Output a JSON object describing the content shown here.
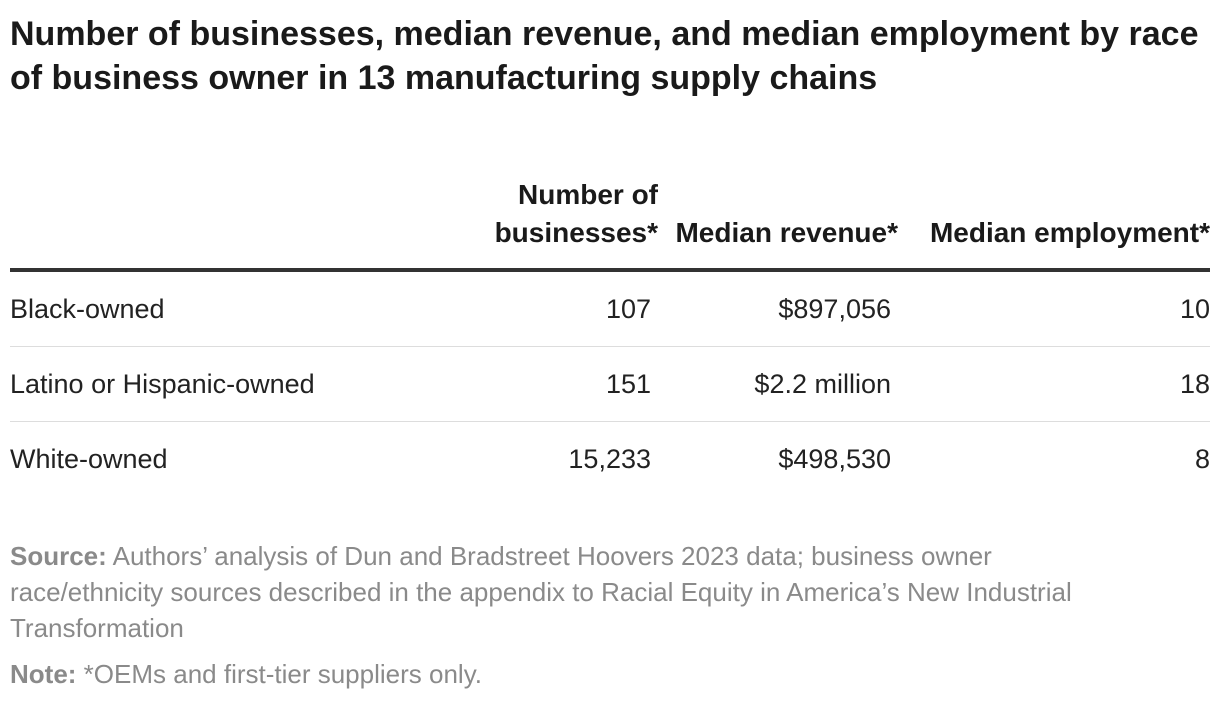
{
  "title": "Number of businesses, median revenue, and median employment by race of business owner in 13 manufacturing supply chains",
  "chart_data": {
    "type": "table",
    "title": "Number of businesses, median revenue, and median employment by race of business owner in 13 manufacturing supply chains",
    "columns": [
      "",
      "Number of businesses*",
      "Median revenue*",
      "Median employment*"
    ],
    "headers": {
      "number": "Number of businesses*",
      "revenue": "Median revenue*",
      "employment": "Median employment*"
    },
    "rows": [
      {
        "label": "Black-owned",
        "number": "107",
        "revenue": "$897,056",
        "employment": "10"
      },
      {
        "label": "Latino or Hispanic-owned",
        "number": "151",
        "revenue": "$2.2 million",
        "employment": "18"
      },
      {
        "label": "White-owned",
        "number": "15,233",
        "revenue": "$498,530",
        "employment": "8"
      }
    ]
  },
  "source": {
    "label": "Source:",
    "text": "Authors’ analysis of Dun and Bradstreet Hoovers 2023 data; business owner race/ethnicity sources described in the appendix to Racial Equity in America’s New Industrial Transformation"
  },
  "note": {
    "label": "Note:",
    "text": "*OEMs and first-tier suppliers only."
  },
  "colors": {
    "text": "#1a1a1a",
    "muted": "#8a8a8a",
    "rule": "#333333",
    "row_divider": "#dddddd"
  }
}
